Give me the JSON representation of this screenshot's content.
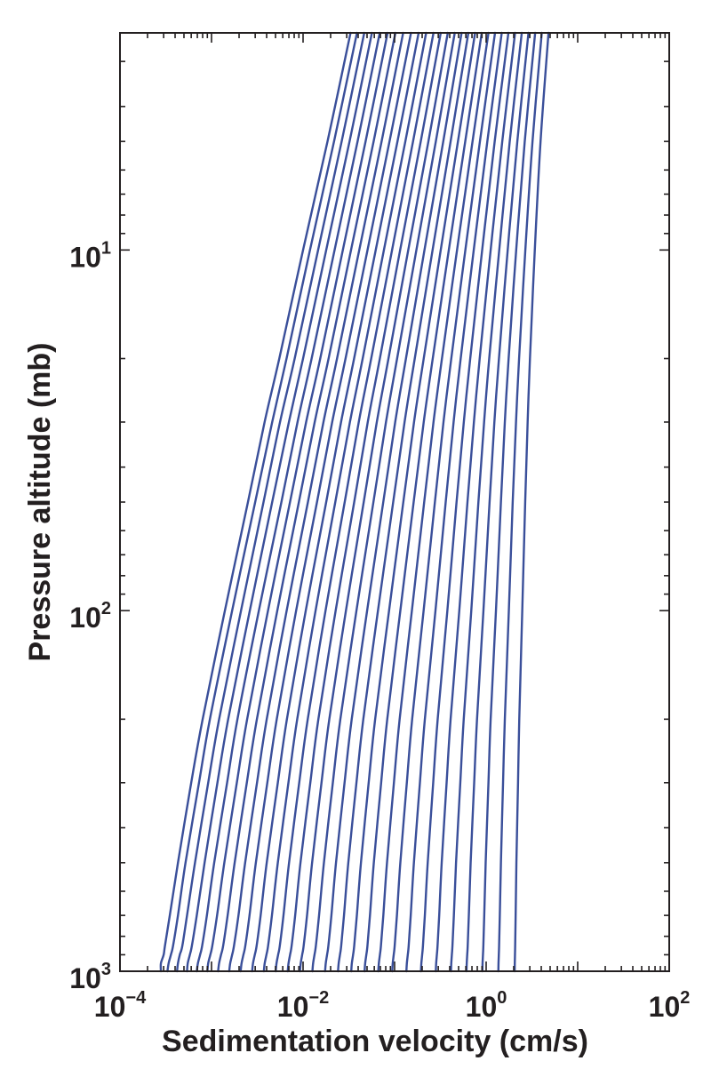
{
  "chart_data": {
    "type": "line",
    "title": "",
    "xlabel": "Sedimentation velocity (cm/s)",
    "ylabel": "Pressure altitude (mb)",
    "x_scale": "log",
    "y_scale": "log",
    "y_inverted": true,
    "xlim": [
      0.0001,
      100
    ],
    "ylim": [
      1000,
      2.5
    ],
    "x_ticks": [
      {
        "value": 0.0001,
        "base": "10",
        "exp": "−4"
      },
      {
        "value": 0.01,
        "base": "10",
        "exp": "−2"
      },
      {
        "value": 1,
        "base": "10",
        "exp": "0"
      },
      {
        "value": 100,
        "base": "10",
        "exp": "2"
      }
    ],
    "y_ticks": [
      {
        "value": 10,
        "base": "10",
        "exp": "1"
      },
      {
        "value": 100,
        "base": "10",
        "exp": "2"
      },
      {
        "value": 1000,
        "base": "10",
        "exp": "3"
      }
    ],
    "grid": false,
    "legend": "none",
    "line_color": "#3a4f9a",
    "pressure_levels": [
      1000,
      950,
      900,
      850,
      700,
      500,
      300,
      200,
      100,
      50,
      30,
      20,
      10,
      5,
      2.5
    ],
    "series": [
      {
        "velocities": [
          0.00028,
          0.00028,
          0.0003,
          0.00031,
          0.00035,
          0.00043,
          0.0006,
          0.0008,
          0.0014,
          0.0025,
          0.0038,
          0.0055,
          0.01,
          0.0185,
          0.033
        ]
      },
      {
        "velocities": [
          0.00033,
          0.00034,
          0.00036,
          0.00038,
          0.00043,
          0.00052,
          0.00073,
          0.00096,
          0.00168,
          0.003,
          0.0046,
          0.0066,
          0.0119,
          0.0218,
          0.0388
        ]
      },
      {
        "velocities": [
          0.00042,
          0.00043,
          0.00045,
          0.00048,
          0.00054,
          0.00066,
          0.00092,
          0.00121,
          0.0021,
          0.0037,
          0.0056,
          0.0081,
          0.0146,
          0.0264,
          0.0466
        ]
      },
      {
        "velocities": [
          0.00054,
          0.00055,
          0.00058,
          0.00061,
          0.00069,
          0.00084,
          0.00116,
          0.00152,
          0.00262,
          0.0046,
          0.007,
          0.01,
          0.0179,
          0.0322,
          0.0565
        ]
      },
      {
        "velocities": [
          0.00069,
          0.00071,
          0.00075,
          0.00079,
          0.00089,
          0.00107,
          0.00148,
          0.00192,
          0.00329,
          0.0058,
          0.0087,
          0.0124,
          0.0221,
          0.0394,
          0.0688
        ]
      },
      {
        "velocities": [
          0.0009,
          0.00092,
          0.00097,
          0.00102,
          0.00115,
          0.00138,
          0.00189,
          0.00245,
          0.00414,
          0.0072,
          0.0108,
          0.0154,
          0.0272,
          0.0482,
          0.0838
        ]
      },
      {
        "velocities": [
          0.00118,
          0.00121,
          0.00127,
          0.00134,
          0.0015,
          0.00179,
          0.00243,
          0.00313,
          0.00523,
          0.009,
          0.0134,
          0.019,
          0.0334,
          0.059,
          0.102
        ]
      },
      {
        "velocities": [
          0.00156,
          0.0016,
          0.00168,
          0.00176,
          0.00197,
          0.00233,
          0.00314,
          0.00401,
          0.00662,
          0.0113,
          0.0167,
          0.0235,
          0.0411,
          0.0721,
          0.124
        ]
      },
      {
        "velocities": [
          0.00208,
          0.00213,
          0.00223,
          0.00234,
          0.0026,
          0.00305,
          0.00407,
          0.00516,
          0.0084,
          0.0142,
          0.0208,
          0.0291,
          0.0506,
          0.088,
          0.151
        ]
      },
      {
        "velocities": [
          0.00278,
          0.00284,
          0.00297,
          0.00311,
          0.00344,
          0.00401,
          0.0053,
          0.00666,
          0.0107,
          0.0179,
          0.026,
          0.0361,
          0.0622,
          0.1075,
          0.183
        ]
      },
      {
        "velocities": [
          0.00373,
          0.00381,
          0.00398,
          0.00415,
          0.00457,
          0.0053,
          0.00692,
          0.00863,
          0.0137,
          0.0225,
          0.0325,
          0.0448,
          0.0764,
          0.131,
          0.221
        ]
      },
      {
        "velocities": [
          0.00503,
          0.00513,
          0.00534,
          0.00557,
          0.00611,
          0.00703,
          0.00908,
          0.01125,
          0.0176,
          0.0285,
          0.0406,
          0.0555,
          0.0938,
          0.159,
          0.266
        ]
      },
      {
        "velocities": [
          0.0068,
          0.00694,
          0.00721,
          0.0075,
          0.0082,
          0.00937,
          0.012,
          0.0147,
          0.0227,
          0.0362,
          0.0509,
          0.069,
          0.115,
          0.193,
          0.319
        ]
      },
      {
        "velocities": [
          0.00925,
          0.00943,
          0.00978,
          0.01015,
          0.01105,
          0.01255,
          0.0159,
          0.01935,
          0.0294,
          0.046,
          0.0639,
          0.0857,
          0.141,
          0.234,
          0.381
        ]
      },
      {
        "velocities": [
          0.01265,
          0.01288,
          0.01333,
          0.0138,
          0.01495,
          0.0169,
          0.02115,
          0.02555,
          0.0383,
          0.0587,
          0.0805,
          0.1065,
          0.173,
          0.282,
          0.454
        ]
      },
      {
        "velocities": [
          0.0174,
          0.0177,
          0.01829,
          0.0189,
          0.0204,
          0.0229,
          0.0284,
          0.034,
          0.0501,
          0.0752,
          0.1015,
          0.133,
          0.212,
          0.34,
          0.539
        ]
      },
      {
        "velocities": [
          0.0241,
          0.0245,
          0.0253,
          0.0261,
          0.028,
          0.0312,
          0.0383,
          0.0455,
          0.0658,
          0.0965,
          0.1285,
          0.166,
          0.26,
          0.409,
          0.639
        ]
      },
      {
        "velocities": [
          0.0336,
          0.0341,
          0.0352,
          0.0362,
          0.0387,
          0.0429,
          0.0521,
          0.0613,
          0.087,
          0.1245,
          0.163,
          0.208,
          0.319,
          0.492,
          0.757
        ]
      },
      {
        "velocities": [
          0.047,
          0.0477,
          0.0491,
          0.0505,
          0.0538,
          0.0593,
          0.0713,
          0.0831,
          0.1155,
          0.1615,
          0.208,
          0.261,
          0.391,
          0.591,
          0.895
        ]
      },
      {
        "velocities": [
          0.0663,
          0.0673,
          0.0691,
          0.0709,
          0.0753,
          0.0826,
          0.0983,
          0.1135,
          0.1545,
          0.2105,
          0.266,
          0.329,
          0.481,
          0.71,
          1.06
        ]
      },
      {
        "velocities": [
          0.0942,
          0.0954,
          0.0978,
          0.1002,
          0.106,
          0.1155,
          0.136,
          0.1555,
          0.2075,
          0.2755,
          0.342,
          0.416,
          0.593,
          0.855,
          1.25
        ]
      },
      {
        "velocities": [
          0.1345,
          0.1361,
          0.1393,
          0.1425,
          0.15,
          0.1625,
          0.189,
          0.214,
          0.2795,
          0.3615,
          0.441,
          0.527,
          0.732,
          1.03,
          1.48
        ]
      },
      {
        "velocities": [
          0.194,
          0.196,
          0.2,
          0.204,
          0.214,
          0.23,
          0.264,
          0.2955,
          0.377,
          0.475,
          0.57,
          0.67,
          0.905,
          1.24,
          1.75
        ]
      },
      {
        "velocities": [
          0.282,
          0.2845,
          0.2895,
          0.2945,
          0.307,
          0.327,
          0.37,
          0.409,
          0.509,
          0.625,
          0.735,
          0.85,
          1.12,
          1.5,
          2.07
        ]
      },
      {
        "velocities": [
          0.413,
          0.416,
          0.422,
          0.4285,
          0.444,
          0.469,
          0.522,
          0.569,
          0.688,
          0.823,
          0.95,
          1.08,
          1.39,
          1.81,
          2.45
        ]
      },
      {
        "velocities": [
          0.61,
          0.614,
          0.621,
          0.629,
          0.647,
          0.677,
          0.74,
          0.795,
          0.934,
          1.09,
          1.23,
          1.38,
          1.72,
          2.19,
          2.9
        ]
      },
      {
        "velocities": [
          0.91,
          0.914,
          0.923,
          0.932,
          0.953,
          0.988,
          1.06,
          1.12,
          1.28,
          1.45,
          1.6,
          1.76,
          2.13,
          2.64,
          3.43
        ]
      },
      {
        "velocities": [
          1.36,
          1.365,
          1.375,
          1.385,
          1.41,
          1.45,
          1.53,
          1.6,
          1.77,
          1.95,
          2.12,
          2.29,
          2.68,
          3.21,
          4.05
        ]
      },
      {
        "velocities": [
          2.05,
          2.055,
          2.065,
          2.075,
          2.1,
          2.14,
          2.23,
          2.3,
          2.48,
          2.67,
          2.84,
          3.01,
          3.4,
          3.93,
          4.8
        ]
      }
    ]
  }
}
